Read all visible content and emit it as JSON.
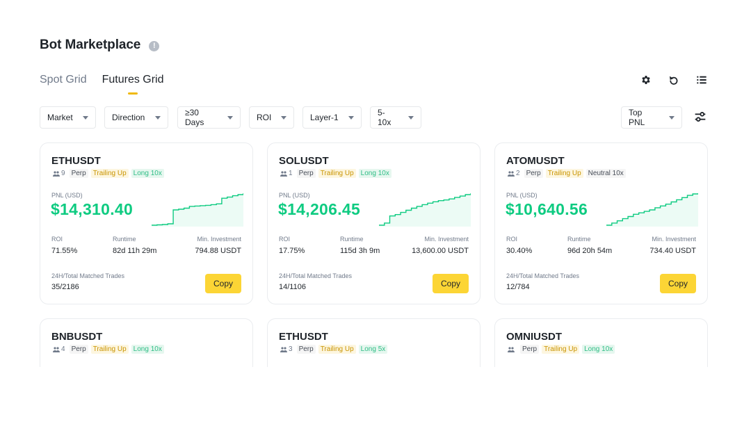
{
  "page": {
    "title": "Bot Marketplace"
  },
  "tabs": [
    {
      "label": "Spot Grid",
      "active": false
    },
    {
      "label": "Futures Grid",
      "active": true
    }
  ],
  "top_icons": [
    "gear-icon",
    "refresh-icon",
    "list-view-icon"
  ],
  "filters": {
    "market": "Market",
    "direction": "Direction",
    "days": "≥30 Days",
    "roi": "ROI",
    "layer": "Layer-1",
    "leverage": "5-10x",
    "sort": "Top PNL"
  },
  "labels": {
    "pnl": "PNL (USD)",
    "roi": "ROI",
    "runtime": "Runtime",
    "min_investment": "Min. Investment",
    "trades": "24H/Total Matched Trades",
    "copy": "Copy"
  },
  "colors": {
    "accent": "#f0b90b",
    "button": "#fcd535",
    "positive": "#0ecb81"
  },
  "cards": [
    {
      "symbol": "ETHUSDT",
      "users": "9",
      "type": "Perp",
      "mode": "Trailing Up",
      "direction": "Long 10x",
      "pnl": "$14,310.40",
      "roi": "71.55%",
      "runtime": "82d 11h 29m",
      "min_investment": "794.88 USDT",
      "trades": "35/2186",
      "trend": [
        2,
        3,
        4,
        6,
        45,
        47,
        50,
        55,
        56,
        57,
        58,
        60,
        62,
        78,
        81,
        85,
        88,
        92
      ]
    },
    {
      "symbol": "SOLUSDT",
      "users": "1",
      "type": "Perp",
      "mode": "Trailing Up",
      "direction": "Long 10x",
      "pnl": "$14,206.45",
      "roi": "17.75%",
      "runtime": "115d 3h 9m",
      "min_investment": "13,600.00 USDT",
      "trades": "14/1106",
      "trend": [
        2,
        8,
        28,
        32,
        38,
        44,
        50,
        55,
        60,
        64,
        68,
        71,
        73,
        76,
        80,
        84,
        88,
        92
      ]
    },
    {
      "symbol": "ATOMUSDT",
      "users": "2",
      "type": "Perp",
      "mode": "Trailing Up",
      "direction": "Neutral 10x",
      "pnl": "$10,640.56",
      "roi": "30.40%",
      "runtime": "96d 20h 54m",
      "min_investment": "734.40 USDT",
      "trades": "12/784",
      "trend": [
        2,
        8,
        14,
        20,
        26,
        32,
        36,
        40,
        44,
        50,
        55,
        60,
        66,
        72,
        78,
        84,
        88,
        90
      ]
    },
    {
      "symbol": "BNBUSDT",
      "users": "4",
      "type": "Perp",
      "mode": "Trailing Up",
      "direction": "Long 10x"
    },
    {
      "symbol": "ETHUSDT",
      "users": "3",
      "type": "Perp",
      "mode": "Trailing Up",
      "direction": "Long 5x"
    },
    {
      "symbol": "OMNIUSDT",
      "users": "",
      "type": "Perp",
      "mode": "Trailing Up",
      "direction": "Long 10x"
    }
  ]
}
